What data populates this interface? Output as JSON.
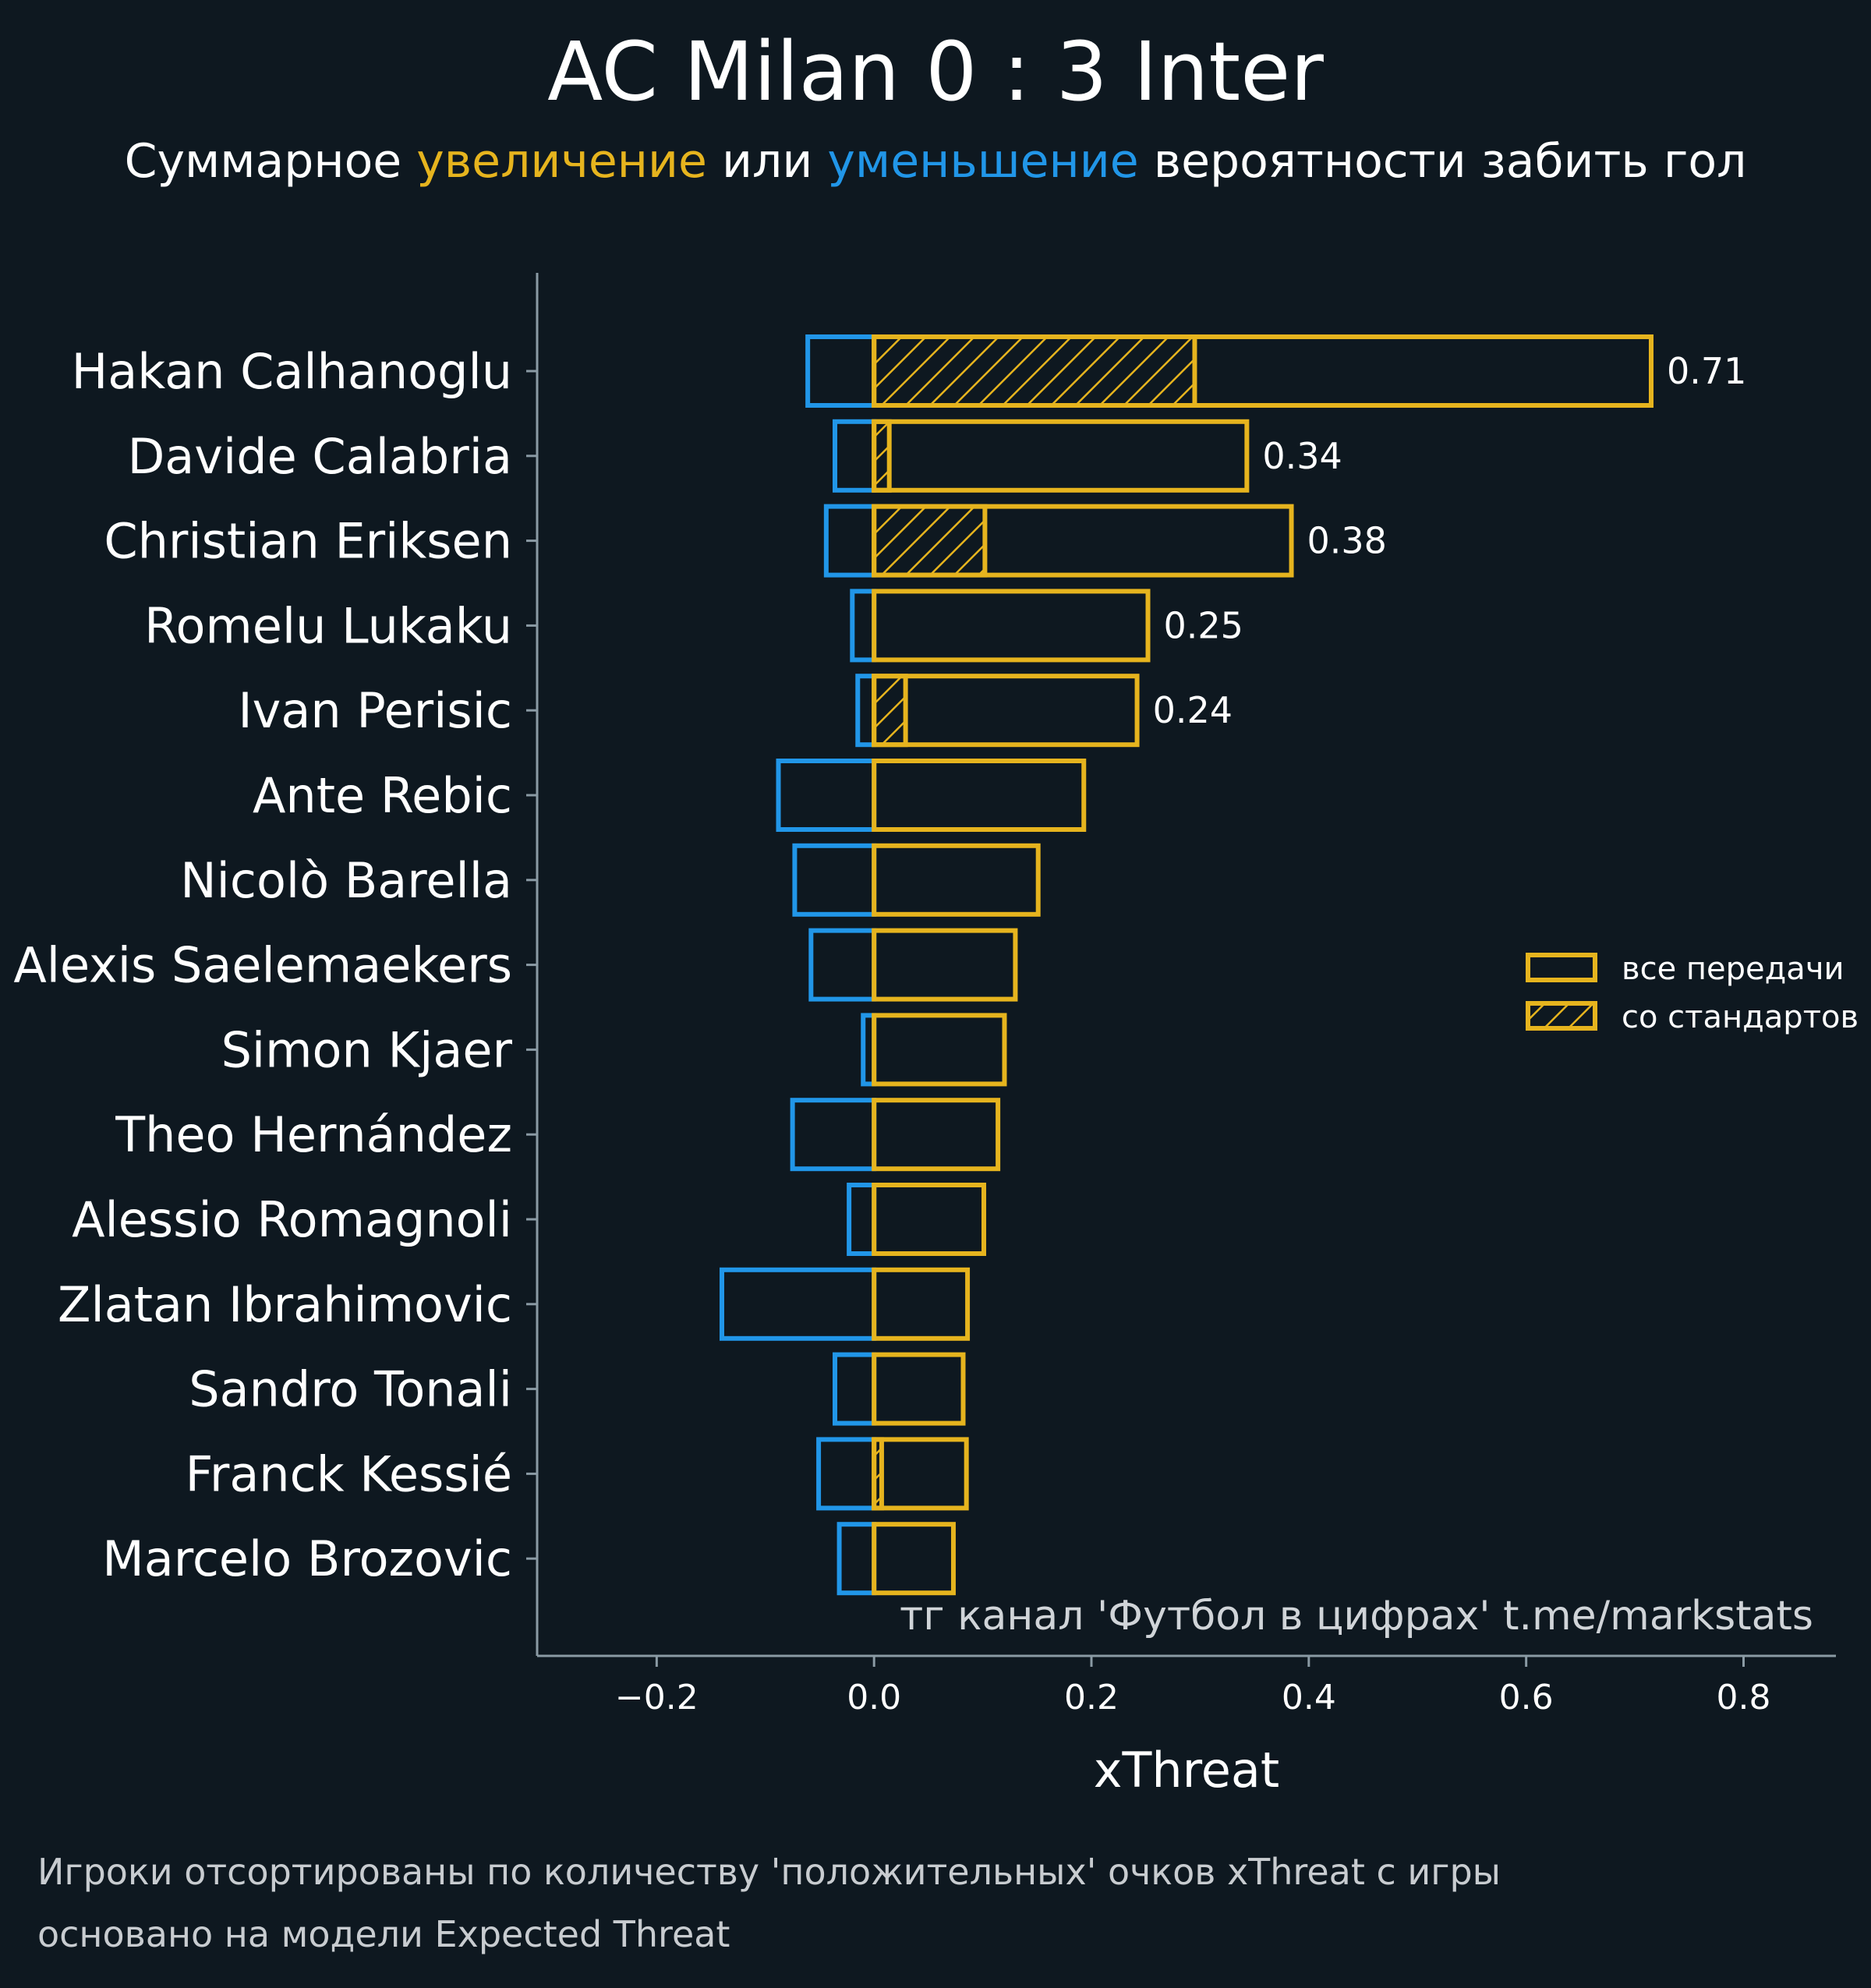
{
  "header": {
    "title": "AC Milan 0 : 3 Inter",
    "subtitle_prefix": "Суммарное",
    "subtitle_increase": "увеличение",
    "subtitle_or": "или",
    "subtitle_decrease": "уменьшение",
    "subtitle_suffix": "вероятности забить гол"
  },
  "footer": {
    "line1": "Игроки отсортированы по количеству 'положительных' очков xThreat с игры",
    "line2": "основано на модели Expected Threat"
  },
  "colors": {
    "background": "#0e1820",
    "increase": "#e6b41e",
    "decrease": "#2196e8",
    "axis": "#8a9aa4",
    "text": "#ffffff"
  },
  "chart_data": {
    "type": "bar",
    "orientation": "horizontal",
    "title": "AC Milan 0 : 3 Inter",
    "xlabel": "xThreat",
    "ylabel": "",
    "xlim": [
      -0.31,
      0.885
    ],
    "xticks": [
      -0.2,
      0.0,
      0.2,
      0.4,
      0.6,
      0.8
    ],
    "xtick_labels": [
      "−0.2",
      "0.0",
      "0.2",
      "0.4",
      "0.6",
      "0.8"
    ],
    "annotation": "тг канал 'Футбол в цифрах'  t.me/markstats",
    "legend": {
      "position": "right",
      "entries": [
        {
          "label": "все передачи",
          "style": "outline"
        },
        {
          "label": "со стандартов",
          "style": "hatched"
        }
      ]
    },
    "categories": [
      "Hakan Calhanoglu",
      "Davide Calabria",
      "Christian Eriksen",
      "Romelu Lukaku",
      "Ivan Perisic",
      "Ante Rebic",
      "Nicolò Barella",
      "Alexis Saelemaekers",
      "Simon Kjaer",
      "Theo Hernández",
      "Alessio Romagnoli",
      "Zlatan Ibrahimovic",
      "Sandro Tonali",
      "Franck Kessié",
      "Marcelo Brozovic"
    ],
    "series": [
      {
        "name": "все передачи (положительные)",
        "values": [
          0.715,
          0.343,
          0.384,
          0.252,
          0.242,
          0.193,
          0.151,
          0.13,
          0.12,
          0.114,
          0.101,
          0.086,
          0.082,
          0.085,
          0.073
        ]
      },
      {
        "name": "все передачи (отрицательные)",
        "values": [
          -0.061,
          -0.036,
          -0.044,
          -0.02,
          -0.015,
          -0.088,
          -0.073,
          -0.058,
          -0.01,
          -0.075,
          -0.023,
          -0.14,
          -0.036,
          -0.051,
          -0.032
        ]
      },
      {
        "name": "со стандартов",
        "values": [
          0.295,
          0.014,
          0.102,
          0.0,
          0.029,
          0.0,
          0.0,
          0.0,
          0.0,
          0.0,
          0.0,
          0.0,
          0.0,
          0.007,
          0.0
        ]
      }
    ],
    "value_labels": [
      "0.71",
      "0.34",
      "0.38",
      "0.25",
      "0.24",
      "",
      "",
      "",
      "",
      "",
      "",
      "",
      "",
      "",
      ""
    ]
  }
}
